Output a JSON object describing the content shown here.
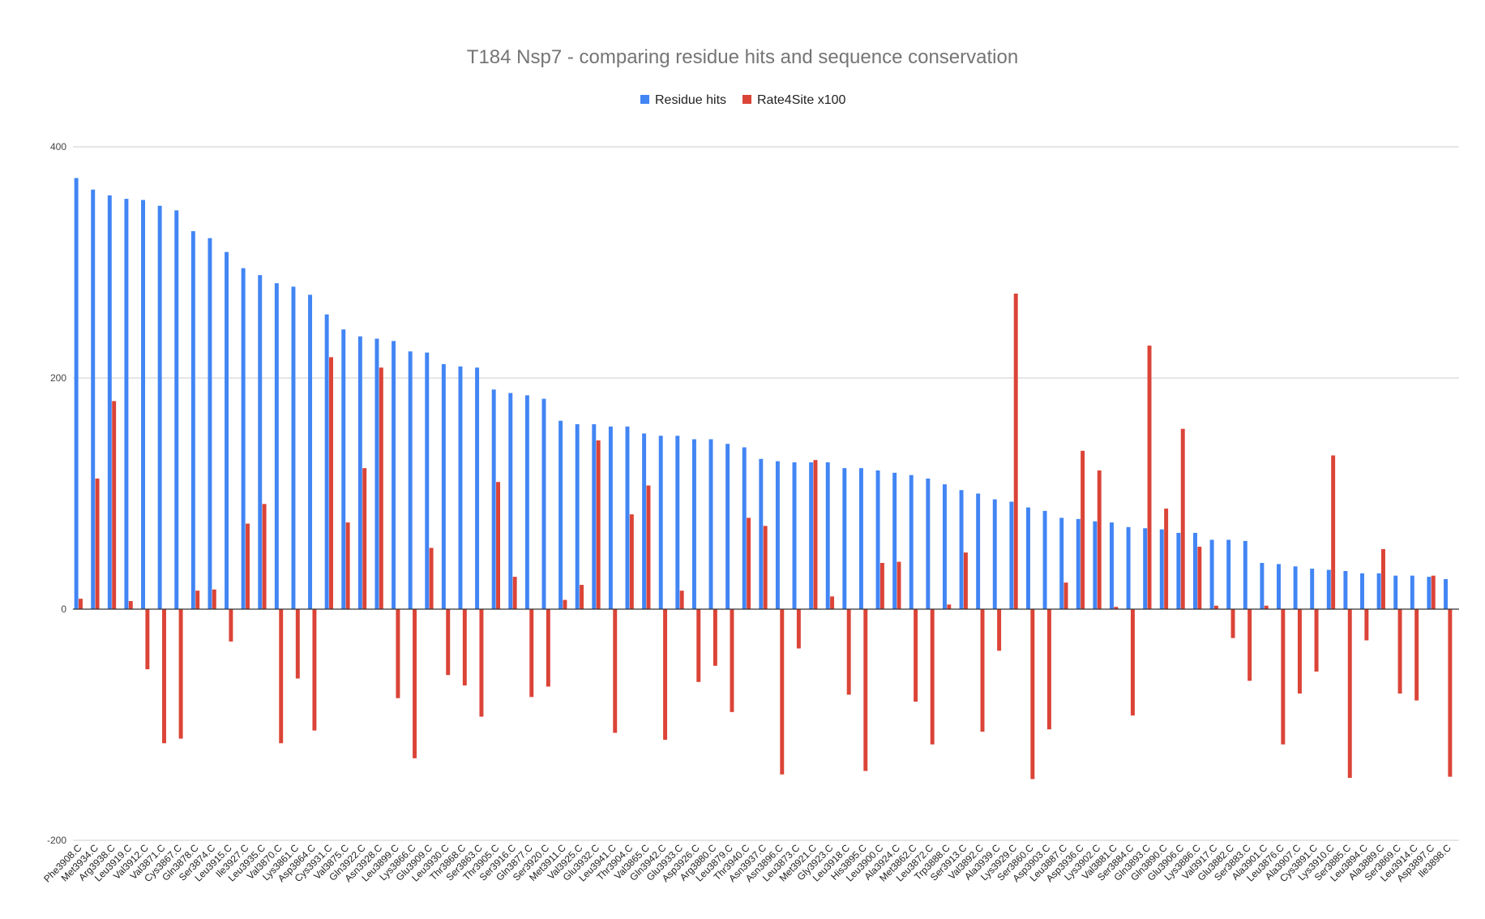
{
  "chart_data": {
    "type": "bar",
    "title": "T184 Nsp7 - comparing residue hits and sequence conservation",
    "xlabel": "",
    "ylabel": "",
    "ylim": [
      -200,
      400
    ],
    "yticks": [
      -200,
      0,
      200,
      400
    ],
    "grid": true,
    "legend_position": "top-center",
    "categories": [
      "Phe3908.C",
      "Met3934.C",
      "Arg3938.C",
      "Leu3919.C",
      "Val3912.C",
      "Val3871.C",
      "Cys3867.C",
      "Gln3878.C",
      "Ser3874.C",
      "Leu3915.C",
      "Ile3927.C",
      "Leu3935.C",
      "Val3870.C",
      "Lys3861.C",
      "Asp3864.C",
      "Cys3931.C",
      "Val3875.C",
      "Gln3922.C",
      "Asn3928.C",
      "Leu3899.C",
      "Lys3866.C",
      "Glu3909.C",
      "Leu3930.C",
      "Thr3868.C",
      "Ser3863.C",
      "Thr3905.C",
      "Ser3916.C",
      "Gln3877.C",
      "Ser3920.C",
      "Met3911.C",
      "Val3925.C",
      "Glu3932.C",
      "Leu3941.C",
      "Thr3904.C",
      "Val3865.C",
      "Gln3942.C",
      "Glu3933.C",
      "Asp3926.C",
      "Arg3880.C",
      "Leu3879.C",
      "Thr3940.C",
      "Asn3937.C",
      "Asn3896.C",
      "Leu3873.C",
      "Met3921.C",
      "Gly3923.C",
      "Leu3918.C",
      "His3895.C",
      "Leu3900.C",
      "Ala3924.C",
      "Met3862.C",
      "Leu3872.C",
      "Trp3888.C",
      "Ser3913.C",
      "Val3892.C",
      "Ala3939.C",
      "Lys3929.C",
      "Ser3860.C",
      "Asp3903.C",
      "Leu3887.C",
      "Asp3936.C",
      "Lys3902.C",
      "Val3881.C",
      "Ser3884.C",
      "Gln3893.C",
      "Gln3890.C",
      "Glu3906.C",
      "Lys3886.C",
      "Val3917.C",
      "Glu3882.C",
      "Ser3883.C",
      "Ala3901.C",
      "Leu3876.C",
      "Ala3907.C",
      "Cys3891.C",
      "Lys3910.C",
      "Ser3885.C",
      "Leu3894.C",
      "Ala3889.C",
      "Ser3869.C",
      "Leu3914.C",
      "Asp3897.C",
      "Ile3898.C"
    ],
    "series": [
      {
        "name": "Residue hits",
        "color": "#4285F4",
        "values": [
          373,
          363,
          358,
          355,
          354,
          349,
          345,
          327,
          321,
          309,
          295,
          289,
          282,
          279,
          272,
          255,
          242,
          236,
          234,
          232,
          223,
          222,
          212,
          210,
          209,
          190,
          187,
          185,
          182,
          163,
          160,
          160,
          158,
          158,
          152,
          150,
          150,
          147,
          147,
          143,
          140,
          130,
          128,
          127,
          127,
          127,
          122,
          122,
          120,
          118,
          116,
          113,
          108,
          103,
          100,
          95,
          93,
          88,
          85,
          79,
          78,
          76,
          75,
          71,
          70,
          69,
          66,
          66,
          60,
          60,
          59,
          40,
          39,
          37,
          35,
          34,
          33,
          31,
          31,
          29,
          29,
          28,
          26
        ]
      },
      {
        "name": "Rate4Site x100",
        "color": "#DB4437",
        "values": [
          9,
          113,
          180,
          7,
          -52,
          -116,
          -112,
          16,
          17,
          -28,
          74,
          91,
          -116,
          -60,
          -105,
          218,
          75,
          122,
          209,
          -77,
          -129,
          53,
          -57,
          -66,
          -93,
          110,
          28,
          -76,
          -67,
          8,
          21,
          146,
          -107,
          82,
          107,
          -113,
          16,
          -63,
          -49,
          -89,
          79,
          72,
          -143,
          -34,
          129,
          11,
          -74,
          -140,
          40,
          41,
          -80,
          -117,
          4,
          49,
          -106,
          -36,
          273,
          -147,
          -104,
          23,
          137,
          120,
          2,
          -92,
          228,
          87,
          156,
          54,
          3,
          -25,
          -62,
          3,
          -117,
          -73,
          -54,
          133,
          -146,
          -27,
          52,
          -73,
          -79,
          29,
          -145
        ]
      }
    ]
  }
}
